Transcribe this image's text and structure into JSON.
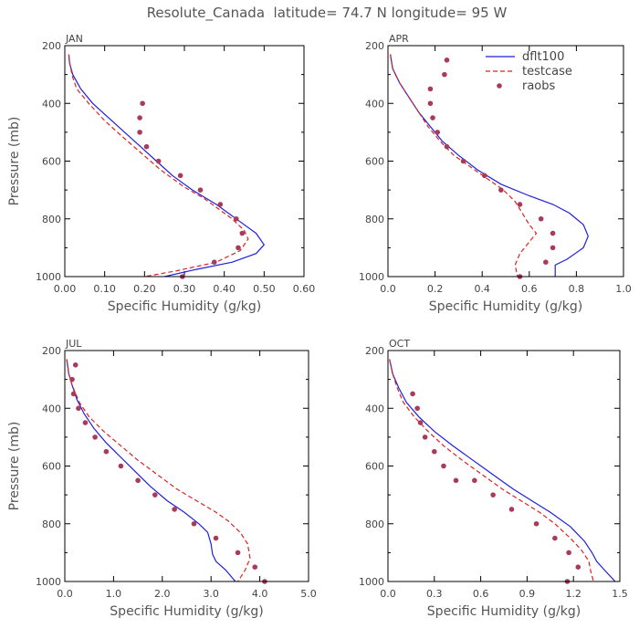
{
  "title": "Resolute_Canada  latitude= 74.7 N longitude= 95 W",
  "legend": {
    "placement": "top-right of APR panel",
    "entries": [
      {
        "label": "dflt100",
        "color": "#1f1fdd",
        "style": "solid"
      },
      {
        "label": "testcase",
        "color": "#dd2222",
        "style": "dashed"
      },
      {
        "label": "raobs",
        "color": "#a83a5a",
        "style": "dots"
      }
    ]
  },
  "colors": {
    "dflt100": "#1f1fdd",
    "testcase": "#dd2222",
    "raobs": "#a83a5a",
    "axis": "#000000"
  },
  "chart_data": [
    {
      "type": "line",
      "panel": "JAN",
      "xlabel": "Specific Humidity (g/kg)",
      "ylabel": "Pressure (mb)",
      "xlim": [
        0,
        0.6
      ],
      "ylim": [
        1000,
        200
      ],
      "xticks": [
        "0.00",
        "0.10",
        "0.20",
        "0.30",
        "0.40",
        "0.50",
        "0.60"
      ],
      "yticks": [
        "200",
        "400",
        "600",
        "800",
        "1000"
      ],
      "series": [
        {
          "name": "dflt100",
          "style": "solid",
          "points": [
            [
              0.01,
              230
            ],
            [
              0.012,
              260
            ],
            [
              0.02,
              300
            ],
            [
              0.04,
              350
            ],
            [
              0.07,
              400
            ],
            [
              0.11,
              450
            ],
            [
              0.15,
              500
            ],
            [
              0.19,
              550
            ],
            [
              0.23,
              600
            ],
            [
              0.27,
              650
            ],
            [
              0.32,
              700
            ],
            [
              0.38,
              750
            ],
            [
              0.43,
              800
            ],
            [
              0.48,
              850
            ],
            [
              0.5,
              890
            ],
            [
              0.48,
              920
            ],
            [
              0.42,
              950
            ],
            [
              0.33,
              975
            ],
            [
              0.25,
              1000
            ]
          ]
        },
        {
          "name": "testcase",
          "style": "dashed",
          "points": [
            [
              0.01,
              230
            ],
            [
              0.012,
              260
            ],
            [
              0.02,
              310
            ],
            [
              0.03,
              350
            ],
            [
              0.06,
              400
            ],
            [
              0.1,
              460
            ],
            [
              0.14,
              510
            ],
            [
              0.19,
              570
            ],
            [
              0.24,
              630
            ],
            [
              0.3,
              690
            ],
            [
              0.35,
              730
            ],
            [
              0.39,
              770
            ],
            [
              0.42,
              800
            ],
            [
              0.45,
              840
            ],
            [
              0.46,
              870
            ],
            [
              0.44,
              910
            ],
            [
              0.38,
              950
            ],
            [
              0.28,
              980
            ],
            [
              0.2,
              1000
            ]
          ]
        },
        {
          "name": "raobs",
          "style": "dots",
          "points": [
            [
              0.195,
              400
            ],
            [
              0.188,
              450
            ],
            [
              0.188,
              500
            ],
            [
              0.205,
              550
            ],
            [
              0.235,
              600
            ],
            [
              0.29,
              650
            ],
            [
              0.34,
              700
            ],
            [
              0.39,
              750
            ],
            [
              0.43,
              800
            ],
            [
              0.445,
              850
            ],
            [
              0.435,
              900
            ],
            [
              0.375,
              950
            ],
            [
              0.295,
              1000
            ]
          ]
        }
      ]
    },
    {
      "type": "line",
      "panel": "APR",
      "xlabel": "Specific Humidity (g/kg)",
      "ylabel": "Pressure (mb)",
      "xlim": [
        0,
        1.0
      ],
      "ylim": [
        1000,
        200
      ],
      "xticks": [
        "0.0",
        "0.2",
        "0.4",
        "0.6",
        "0.8",
        "1.0"
      ],
      "yticks": [
        "200",
        "400",
        "600",
        "800",
        "1000"
      ],
      "series": [
        {
          "name": "dflt100",
          "style": "solid",
          "points": [
            [
              0.01,
              230
            ],
            [
              0.02,
              280
            ],
            [
              0.05,
              330
            ],
            [
              0.09,
              380
            ],
            [
              0.13,
              430
            ],
            [
              0.18,
              480
            ],
            [
              0.23,
              530
            ],
            [
              0.3,
              580
            ],
            [
              0.38,
              630
            ],
            [
              0.48,
              680
            ],
            [
              0.6,
              720
            ],
            [
              0.7,
              750
            ],
            [
              0.77,
              780
            ],
            [
              0.83,
              820
            ],
            [
              0.85,
              860
            ],
            [
              0.83,
              900
            ],
            [
              0.76,
              940
            ],
            [
              0.71,
              960
            ],
            [
              0.71,
              1000
            ]
          ]
        },
        {
          "name": "testcase",
          "style": "dashed",
          "points": [
            [
              0.01,
              230
            ],
            [
              0.02,
              280
            ],
            [
              0.05,
              330
            ],
            [
              0.09,
              380
            ],
            [
              0.13,
              430
            ],
            [
              0.17,
              480
            ],
            [
              0.22,
              530
            ],
            [
              0.28,
              580
            ],
            [
              0.35,
              620
            ],
            [
              0.42,
              660
            ],
            [
              0.49,
              700
            ],
            [
              0.54,
              740
            ],
            [
              0.57,
              780
            ],
            [
              0.6,
              820
            ],
            [
              0.63,
              850
            ],
            [
              0.6,
              880
            ],
            [
              0.56,
              920
            ],
            [
              0.54,
              960
            ],
            [
              0.55,
              1000
            ]
          ]
        },
        {
          "name": "raobs",
          "style": "dots",
          "points": [
            [
              0.25,
              250
            ],
            [
              0.24,
              300
            ],
            [
              0.18,
              350
            ],
            [
              0.18,
              400
            ],
            [
              0.19,
              450
            ],
            [
              0.21,
              500
            ],
            [
              0.25,
              550
            ],
            [
              0.32,
              600
            ],
            [
              0.41,
              650
            ],
            [
              0.48,
              700
            ],
            [
              0.56,
              750
            ],
            [
              0.65,
              800
            ],
            [
              0.7,
              850
            ],
            [
              0.7,
              900
            ],
            [
              0.67,
              950
            ],
            [
              0.56,
              1000
            ]
          ]
        }
      ]
    },
    {
      "type": "line",
      "panel": "JUL",
      "xlabel": "Specific Humidity (g/kg)",
      "ylabel": "Pressure (mb)",
      "xlim": [
        0,
        5.0
      ],
      "ylim": [
        1000,
        200
      ],
      "xticks": [
        "0.0",
        "1.0",
        "2.0",
        "3.0",
        "4.0",
        "5.0"
      ],
      "yticks": [
        "200",
        "400",
        "600",
        "800",
        "1000"
      ],
      "series": [
        {
          "name": "dflt100",
          "style": "solid",
          "points": [
            [
              0.04,
              230
            ],
            [
              0.08,
              280
            ],
            [
              0.15,
              320
            ],
            [
              0.25,
              370
            ],
            [
              0.4,
              420
            ],
            [
              0.6,
              470
            ],
            [
              0.85,
              520
            ],
            [
              1.15,
              570
            ],
            [
              1.45,
              620
            ],
            [
              1.75,
              670
            ],
            [
              2.1,
              720
            ],
            [
              2.45,
              760
            ],
            [
              2.75,
              800
            ],
            [
              2.93,
              830
            ],
            [
              3.0,
              870
            ],
            [
              3.03,
              905
            ],
            [
              3.1,
              930
            ],
            [
              3.3,
              960
            ],
            [
              3.5,
              1000
            ]
          ]
        },
        {
          "name": "testcase",
          "style": "dashed",
          "points": [
            [
              0.04,
              230
            ],
            [
              0.08,
              280
            ],
            [
              0.15,
              320
            ],
            [
              0.3,
              380
            ],
            [
              0.5,
              430
            ],
            [
              0.8,
              480
            ],
            [
              1.15,
              530
            ],
            [
              1.5,
              580
            ],
            [
              1.9,
              630
            ],
            [
              2.3,
              680
            ],
            [
              2.7,
              720
            ],
            [
              3.1,
              760
            ],
            [
              3.35,
              790
            ],
            [
              3.6,
              830
            ],
            [
              3.75,
              870
            ],
            [
              3.8,
              920
            ],
            [
              3.7,
              960
            ],
            [
              3.55,
              1000
            ]
          ]
        },
        {
          "name": "raobs",
          "style": "dots",
          "points": [
            [
              0.22,
              250
            ],
            [
              0.15,
              300
            ],
            [
              0.18,
              350
            ],
            [
              0.28,
              400
            ],
            [
              0.42,
              450
            ],
            [
              0.62,
              500
            ],
            [
              0.85,
              550
            ],
            [
              1.15,
              600
            ],
            [
              1.5,
              650
            ],
            [
              1.85,
              700
            ],
            [
              2.25,
              750
            ],
            [
              2.65,
              800
            ],
            [
              3.1,
              850
            ],
            [
              3.55,
              900
            ],
            [
              3.9,
              950
            ],
            [
              4.1,
              1000
            ]
          ]
        }
      ]
    },
    {
      "type": "line",
      "panel": "OCT",
      "xlabel": "Specific Humidity (g/kg)",
      "ylabel": "Pressure (mb)",
      "xlim": [
        0,
        1.5
      ],
      "ylim": [
        1000,
        200
      ],
      "xticks": [
        "0.0",
        "0.3",
        "0.6",
        "0.9",
        "1.2",
        "1.5"
      ],
      "yticks": [
        "200",
        "400",
        "600",
        "800",
        "1000"
      ],
      "series": [
        {
          "name": "dflt100",
          "style": "solid",
          "points": [
            [
              0.01,
              230
            ],
            [
              0.03,
              280
            ],
            [
              0.07,
              330
            ],
            [
              0.12,
              380
            ],
            [
              0.2,
              430
            ],
            [
              0.3,
              480
            ],
            [
              0.42,
              530
            ],
            [
              0.55,
              580
            ],
            [
              0.68,
              630
            ],
            [
              0.81,
              680
            ],
            [
              0.93,
              720
            ],
            [
              1.05,
              760
            ],
            [
              1.18,
              810
            ],
            [
              1.27,
              860
            ],
            [
              1.32,
              900
            ],
            [
              1.35,
              930
            ],
            [
              1.4,
              960
            ],
            [
              1.47,
              1000
            ]
          ]
        },
        {
          "name": "testcase",
          "style": "dashed",
          "points": [
            [
              0.01,
              230
            ],
            [
              0.03,
              280
            ],
            [
              0.06,
              330
            ],
            [
              0.1,
              380
            ],
            [
              0.17,
              430
            ],
            [
              0.26,
              480
            ],
            [
              0.36,
              530
            ],
            [
              0.48,
              580
            ],
            [
              0.61,
              630
            ],
            [
              0.74,
              680
            ],
            [
              0.86,
              720
            ],
            [
              0.98,
              760
            ],
            [
              1.08,
              800
            ],
            [
              1.18,
              850
            ],
            [
              1.25,
              890
            ],
            [
              1.3,
              930
            ],
            [
              1.31,
              960
            ],
            [
              1.33,
              1000
            ]
          ]
        },
        {
          "name": "raobs",
          "style": "dots",
          "points": [
            [
              0.16,
              350
            ],
            [
              0.19,
              400
            ],
            [
              0.21,
              450
            ],
            [
              0.24,
              500
            ],
            [
              0.3,
              550
            ],
            [
              0.36,
              600
            ],
            [
              0.44,
              650
            ],
            [
              0.56,
              650
            ],
            [
              0.68,
              700
            ],
            [
              0.8,
              750
            ],
            [
              0.96,
              800
            ],
            [
              1.08,
              850
            ],
            [
              1.17,
              900
            ],
            [
              1.23,
              950
            ],
            [
              1.16,
              1000
            ]
          ]
        }
      ]
    }
  ]
}
